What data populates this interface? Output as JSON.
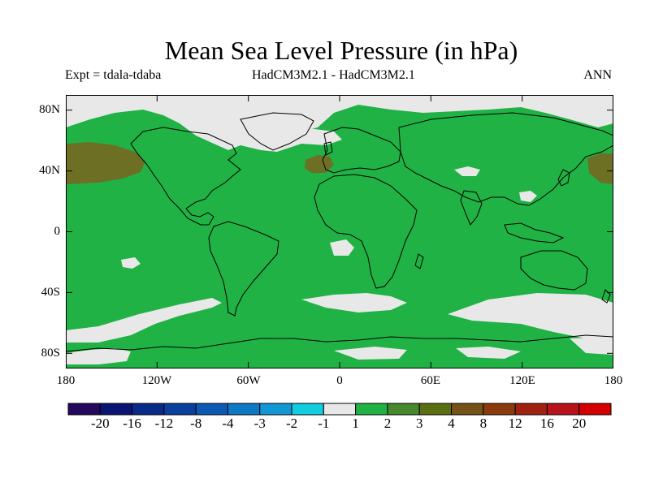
{
  "title": "Mean Sea Level Pressure (in hPa)",
  "subtitle_left": "Expt = tdala-tdaba",
  "subtitle_center": "HadCM3M2.1 - HadCM3M2.1",
  "subtitle_right": "ANN",
  "y_axis_labels": [
    "80N",
    "40N",
    "0",
    "40S",
    "80S"
  ],
  "x_axis_labels": [
    "180",
    "120W",
    "60W",
    "0",
    "60E",
    "120E",
    "180"
  ],
  "colorbar": {
    "labels": [
      "-20",
      "-16",
      "-12",
      "-8",
      "-4",
      "-3",
      "-2",
      "-1",
      "1",
      "2",
      "3",
      "4",
      "8",
      "12",
      "16",
      "20"
    ],
    "colors": [
      "#24085e",
      "#0b1474",
      "#0a2a8a",
      "#0b3f9e",
      "#0b59b2",
      "#0d78c4",
      "#1097d4",
      "#12cde0",
      "#e8e8e8",
      "#20b245",
      "#47882c",
      "#5a6e12",
      "#755218",
      "#8a3a0c",
      "#a02012",
      "#b8121a",
      "#d40000"
    ]
  },
  "map_colors": {
    "green": "#20b245",
    "brown": "#6c6f24",
    "gray": "#e8e8e8"
  }
}
